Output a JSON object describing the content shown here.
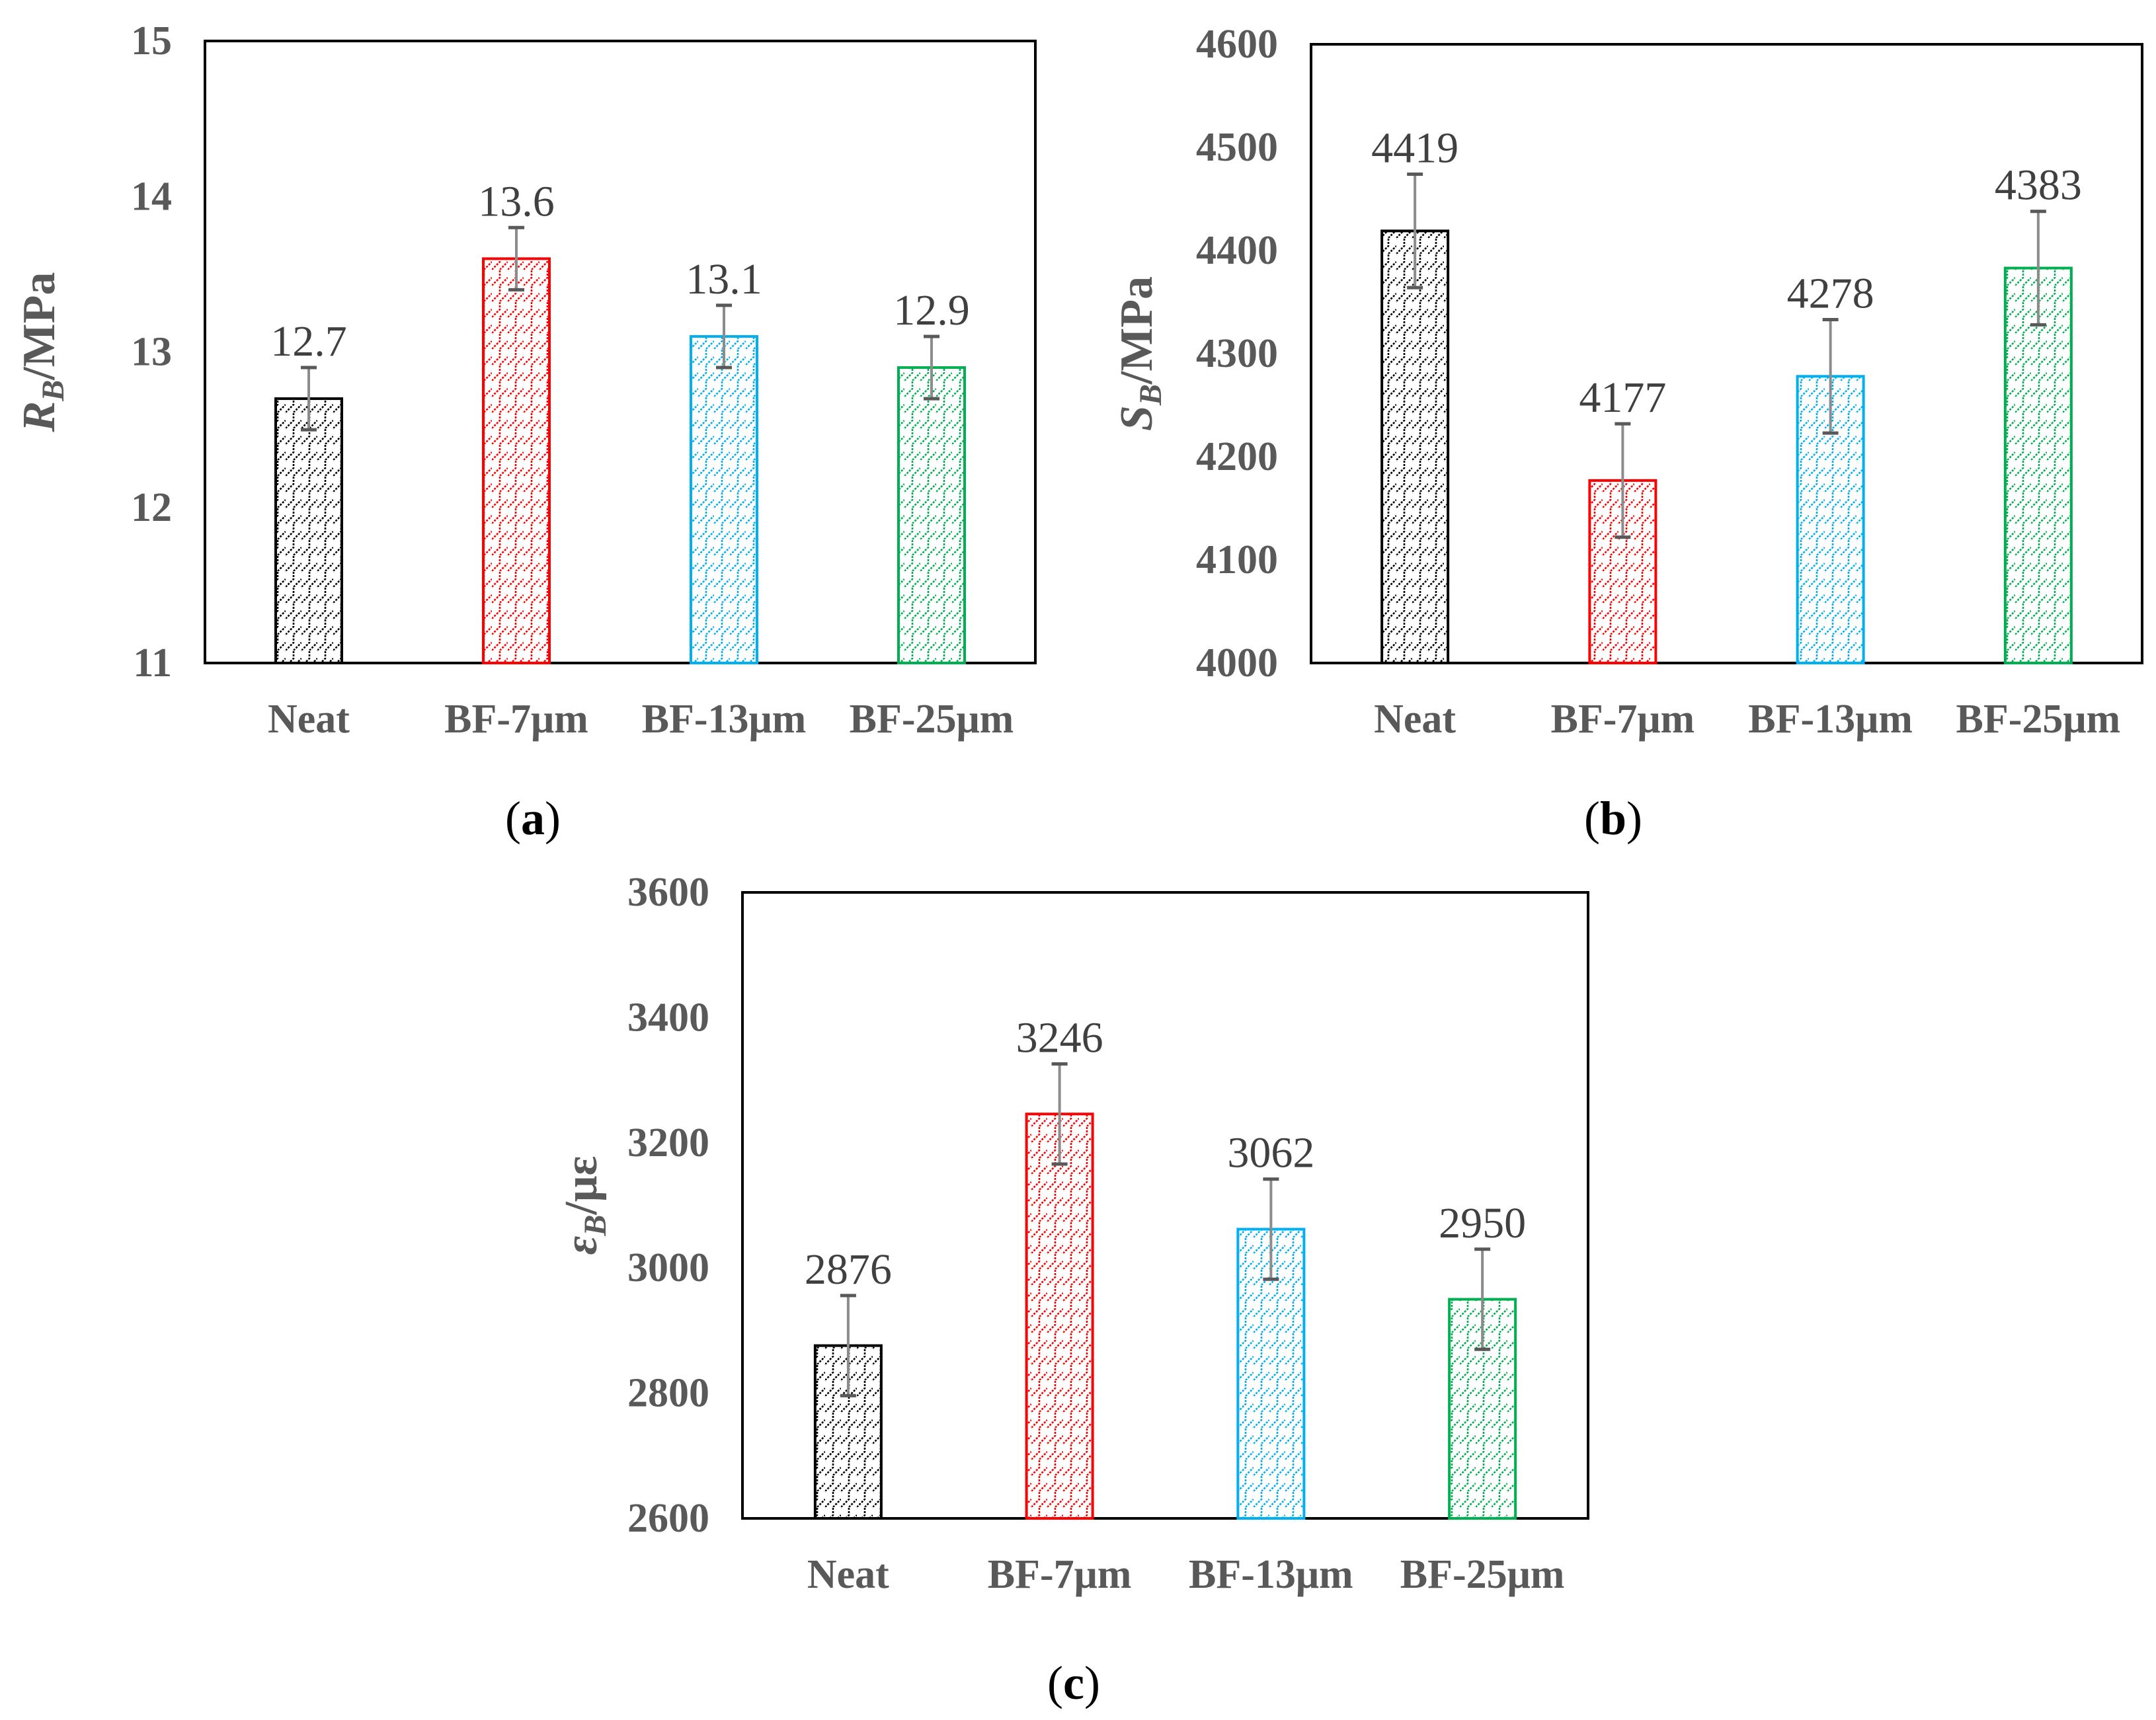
{
  "categories": [
    "Neat",
    "BF-7μm",
    "BF-13μm",
    "BF-25μm"
  ],
  "colors": [
    "#000000",
    "#ff0000",
    "#00b0f0",
    "#00b050"
  ],
  "chart_data": [
    {
      "type": "bar",
      "panel": "a",
      "categories": [
        "Neat",
        "BF-7μm",
        "BF-13μm",
        "BF-25μm"
      ],
      "values": [
        12.7,
        13.6,
        13.1,
        12.9
      ],
      "data_labels": [
        "12.7",
        "13.6",
        "13.1",
        "12.9"
      ],
      "error": [
        0.2,
        0.2,
        0.2,
        0.2
      ],
      "ylabel": {
        "symbol": "R",
        "sub": "B",
        "unit": "/MPa"
      },
      "ylim": [
        11,
        15
      ],
      "yticks": [
        11,
        12,
        13,
        14,
        15
      ],
      "grid": false,
      "legend": "none"
    },
    {
      "type": "bar",
      "panel": "b",
      "categories": [
        "Neat",
        "BF-7μm",
        "BF-13μm",
        "BF-25μm"
      ],
      "values": [
        4419,
        4177,
        4278,
        4383
      ],
      "data_labels": [
        "4419",
        "4177",
        "4278",
        "4383"
      ],
      "error": [
        55,
        55,
        55,
        55
      ],
      "ylabel": {
        "symbol": "S",
        "sub": "B",
        "unit": "/MPa"
      },
      "ylim": [
        4000,
        4600
      ],
      "yticks": [
        4000,
        4100,
        4200,
        4300,
        4400,
        4500,
        4600
      ],
      "grid": false,
      "legend": "none"
    },
    {
      "type": "bar",
      "panel": "c",
      "categories": [
        "Neat",
        "BF-7μm",
        "BF-13μm",
        "BF-25μm"
      ],
      "values": [
        2876,
        3246,
        3062,
        2950
      ],
      "data_labels": [
        "2876",
        "3246",
        "3062",
        "2950"
      ],
      "error": [
        80,
        80,
        80,
        80
      ],
      "ylabel": {
        "symbol": "ε",
        "sub": "B",
        "unit": "/με"
      },
      "ylim": [
        2600,
        3600
      ],
      "yticks": [
        2600,
        2800,
        3000,
        3200,
        3400,
        3600
      ],
      "grid": false,
      "legend": "none"
    }
  ]
}
